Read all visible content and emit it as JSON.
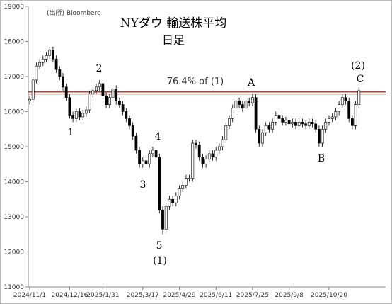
{
  "chart_data": {
    "type": "candlestick",
    "title": "NYダウ 輸送株平均",
    "subtitle": "日足",
    "source": "(出所) Bloomberg",
    "categories": [
      "2024/11/1",
      null,
      null,
      null,
      null,
      null,
      null,
      null,
      null,
      null,
      null,
      null,
      "2024/12/16",
      null,
      null,
      null,
      null,
      null,
      null,
      null,
      null,
      null,
      "2025/1/31",
      null,
      null,
      null,
      null,
      null,
      null,
      null,
      null,
      null,
      null,
      null,
      "2025/3/17",
      null,
      null,
      null,
      null,
      null,
      null,
      null,
      null,
      null,
      null,
      "2025/4/29",
      null,
      null,
      null,
      null,
      null,
      null,
      null,
      null,
      null,
      null,
      "2025/6/11",
      null,
      null,
      null,
      null,
      null,
      null,
      null,
      null,
      null,
      null,
      "2025/7/25",
      null,
      null,
      null,
      null,
      null,
      null,
      null,
      null,
      null,
      null,
      "2025/9/8",
      null,
      null,
      null,
      null,
      null,
      null,
      null,
      null,
      null,
      null,
      null,
      "2025/10/20",
      null,
      null,
      null,
      null,
      null,
      null,
      null,
      null,
      null
    ],
    "open": [
      16300,
      16350,
      16900,
      17300,
      17400,
      17500,
      17600,
      17750,
      17500,
      17200,
      17000,
      16700,
      16400,
      15900,
      15800,
      16000,
      15850,
      15950,
      16050,
      16500,
      16600,
      16700,
      16800,
      16450,
      16200,
      16400,
      16650,
      16300,
      16200,
      16000,
      15800,
      15600,
      15300,
      14900,
      14500,
      14600,
      14500,
      14800,
      14900,
      14700,
      13200,
      12650,
      13300,
      13500,
      13400,
      13600,
      13800,
      13900,
      14100,
      14100,
      15100,
      15050,
      14700,
      14500,
      14650,
      14800,
      14700,
      14900,
      15000,
      15200,
      15600,
      15800,
      16100,
      16300,
      16200,
      16100,
      16300,
      16250,
      16400,
      15500,
      15100,
      15400,
      15600,
      15500,
      15700,
      15900,
      15800,
      15700,
      15750,
      15650,
      15700,
      15600,
      15700,
      15650,
      15600,
      15700,
      15650,
      15500,
      15100,
      15500,
      15700,
      15800,
      15850,
      16000,
      16200,
      16400,
      16300,
      15800,
      15600,
      16200
    ],
    "high": [
      16450,
      17000,
      17400,
      17500,
      17600,
      17700,
      17850,
      17850,
      17600,
      17300,
      17100,
      16800,
      16500,
      16000,
      16100,
      16100,
      16050,
      16150,
      16600,
      16700,
      16800,
      16900,
      16900,
      16550,
      16500,
      16750,
      16750,
      16400,
      16300,
      16100,
      15900,
      15700,
      15400,
      15000,
      14700,
      14700,
      14900,
      15000,
      15000,
      14800,
      13300,
      13400,
      13600,
      13600,
      13700,
      13900,
      14000,
      14200,
      14200,
      15200,
      15200,
      15150,
      14800,
      14750,
      14900,
      14900,
      15000,
      15100,
      15300,
      15700,
      15900,
      16200,
      16400,
      16400,
      16300,
      16400,
      16400,
      16500,
      16500,
      15600,
      15500,
      15700,
      15700,
      15800,
      16000,
      16000,
      15900,
      15850,
      15850,
      15800,
      15800,
      15800,
      15800,
      15750,
      15800,
      15800,
      15750,
      15600,
      15600,
      15800,
      15900,
      15950,
      16100,
      16300,
      16500,
      16500,
      16400,
      15900,
      16300,
      16700
    ],
    "low": [
      16200,
      16250,
      16800,
      17200,
      17300,
      17400,
      17500,
      17400,
      17100,
      16900,
      16600,
      16300,
      15800,
      15700,
      15700,
      15750,
      15750,
      15850,
      15950,
      16400,
      16500,
      16600,
      16350,
      16100,
      16100,
      16300,
      16200,
      16100,
      15900,
      15700,
      15500,
      15200,
      14800,
      14400,
      14400,
      14400,
      14400,
      14700,
      14600,
      13100,
      12500,
      12550,
      13200,
      13300,
      13300,
      13500,
      13700,
      13800,
      14000,
      14000,
      14950,
      14600,
      14400,
      14400,
      14550,
      14600,
      14600,
      14800,
      14900,
      15100,
      15500,
      15700,
      16000,
      16100,
      16000,
      16000,
      16150,
      16150,
      15400,
      15000,
      15000,
      15300,
      15400,
      15400,
      15600,
      15700,
      15600,
      15600,
      15550,
      15550,
      15500,
      15500,
      15550,
      15500,
      15500,
      15550,
      15400,
      15000,
      15000,
      15400,
      15600,
      15700,
      15750,
      15900,
      16100,
      16200,
      15700,
      15500,
      15500,
      16100
    ],
    "close": [
      16350,
      16900,
      17300,
      17400,
      17500,
      17600,
      17750,
      17500,
      17200,
      17000,
      16700,
      16400,
      15900,
      15800,
      16000,
      15850,
      15950,
      16050,
      16500,
      16600,
      16700,
      16800,
      16450,
      16200,
      16400,
      16650,
      16300,
      16200,
      16000,
      15800,
      15600,
      15300,
      14900,
      14500,
      14600,
      14500,
      14800,
      14900,
      14700,
      13200,
      12650,
      13300,
      13500,
      13400,
      13600,
      13800,
      13900,
      14100,
      14100,
      15100,
      15050,
      14700,
      14500,
      14650,
      14800,
      14700,
      14900,
      15000,
      15200,
      15600,
      15800,
      16100,
      16300,
      16200,
      16100,
      16300,
      16250,
      16400,
      15500,
      15100,
      15400,
      15600,
      15500,
      15700,
      15900,
      15800,
      15700,
      15750,
      15650,
      15700,
      15600,
      15700,
      15650,
      15600,
      15700,
      15650,
      15500,
      15100,
      15500,
      15700,
      15800,
      15850,
      16000,
      16200,
      16400,
      16300,
      15800,
      15600,
      16200,
      16600
    ],
    "up_color": "#ffffff",
    "down_color": "#000000",
    "ylim": [
      11000,
      19000
    ],
    "yticks": [
      11000,
      12000,
      13000,
      14000,
      15000,
      16000,
      17000,
      18000,
      19000
    ],
    "reference_line": 16560,
    "reference_color": "#c0392b",
    "reference_label": "76.4% of (1)",
    "reference_label_color": "#2e86c1",
    "annotations": [
      "1",
      "2",
      "3",
      "4",
      "5",
      "(1)",
      "A",
      "B",
      "(2)",
      "C"
    ]
  }
}
